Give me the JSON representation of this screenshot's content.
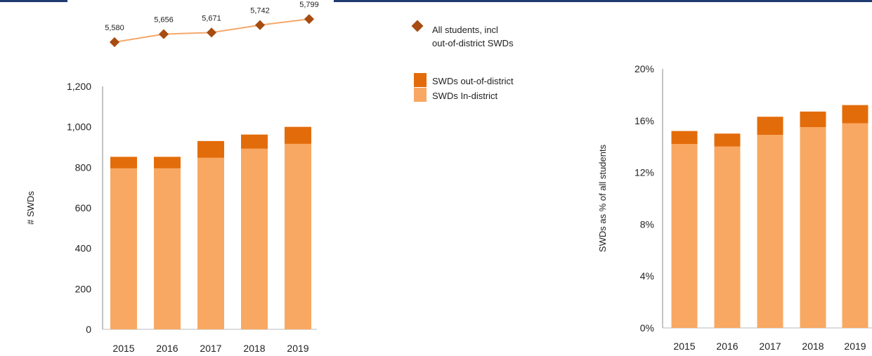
{
  "colors": {
    "in_district": "#f8a862",
    "out_of_district": "#e36c0a",
    "line": "#f5a86a",
    "marker": "#a64c10",
    "axis": "#888888",
    "header_bar": "#1f3a6e"
  },
  "legend": {
    "all_students_line1": "All students, incl",
    "all_students_line2": "out-of-district SWDs",
    "out_of_district": "SWDs out-of-district",
    "in_district": "SWDs In-district"
  },
  "chart_data": [
    {
      "type": "line",
      "x": [
        "2015",
        "2016",
        "2017",
        "2018",
        "2019"
      ],
      "series": [
        {
          "name": "All students, incl out-of-district SWDs",
          "values": [
            5580,
            5656,
            5671,
            5742,
            5799
          ]
        }
      ],
      "data_labels": [
        "5,580",
        "5,656",
        "5,671",
        "5,742",
        "5,799"
      ],
      "marker": "diamond"
    },
    {
      "type": "bar",
      "stacked": true,
      "categories": [
        "2015",
        "2016",
        "2017",
        "2018",
        "2019"
      ],
      "series": [
        {
          "name": "SWDs In-district",
          "values": [
            795,
            795,
            847,
            892,
            916
          ]
        },
        {
          "name": "SWDs out-of-district",
          "values": [
            57,
            57,
            83,
            70,
            84
          ]
        }
      ],
      "ylabel": "# SWDs",
      "ylim": [
        0,
        1200
      ],
      "yticks": [
        0,
        200,
        400,
        600,
        800,
        1000,
        1200
      ],
      "ytick_labels": [
        "0",
        "200",
        "400",
        "600",
        "800",
        "1,000",
        "1,200"
      ]
    },
    {
      "type": "bar",
      "stacked": true,
      "categories": [
        "2015",
        "2016",
        "2017",
        "2018",
        "2019"
      ],
      "series": [
        {
          "name": "SWDs In-district",
          "values": [
            14.2,
            14.0,
            14.9,
            15.5,
            15.8
          ]
        },
        {
          "name": "SWDs out-of-district",
          "values": [
            1.0,
            1.0,
            1.4,
            1.2,
            1.4
          ]
        }
      ],
      "ylabel": "SWDs as % of all students",
      "ylim": [
        0,
        20
      ],
      "yticks": [
        0,
        4,
        8,
        12,
        16,
        20
      ],
      "ytick_labels": [
        "0%",
        "4%",
        "8%",
        "12%",
        "16%",
        "20%"
      ]
    }
  ]
}
